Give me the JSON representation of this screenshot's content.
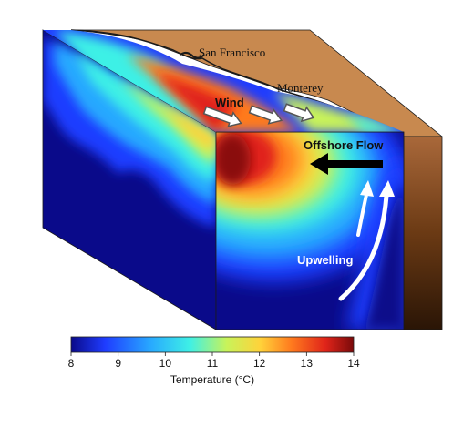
{
  "labels": {
    "san_francisco": "San Francisco",
    "monterey": "Monterey",
    "wind": "Wind",
    "offshore_flow": "Offshore Flow",
    "upwelling": "Upwelling"
  },
  "colorbar": {
    "title": "Temperature (°C)",
    "ticks": [
      "8",
      "9",
      "10",
      "11",
      "12",
      "13",
      "14"
    ],
    "min": 8,
    "max": 14,
    "stops": [
      "#0a0a8a",
      "#1f3cff",
      "#28a8ff",
      "#3ef0e6",
      "#c8f35a",
      "#ffd23a",
      "#ff7a1e",
      "#e0241a",
      "#7a0a0a"
    ]
  },
  "colors": {
    "land_top": "#c8894f",
    "land_side_top": "#a0612e",
    "land_side_bottom": "#2a1506",
    "deep_water": "#0a0a8a"
  }
}
